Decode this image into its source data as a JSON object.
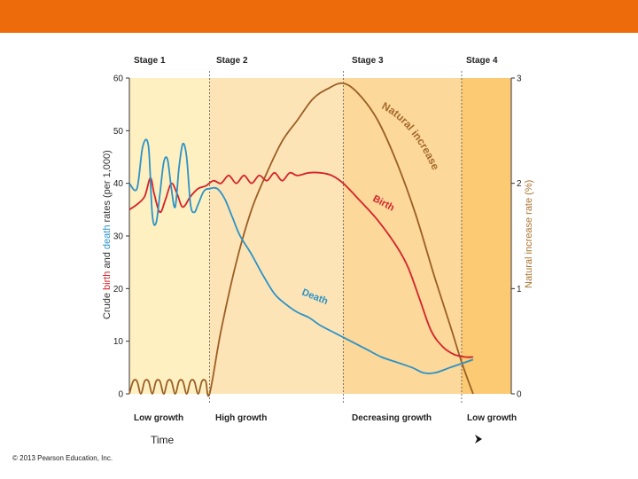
{
  "footer": {
    "copyright": "© 2013 Pearson Education, Inc."
  },
  "chart_data": {
    "type": "line",
    "title": "",
    "stages": [
      "Stage 1",
      "Stage 2",
      "Stage 3",
      "Stage 4"
    ],
    "growth_labels": [
      "Low growth",
      "High growth",
      "Decreasing growth",
      "Low growth"
    ],
    "xlabel": "Time",
    "ylabel_left": {
      "prefix": "Crude ",
      "birth": "birth",
      "mid": " and ",
      "death": "death",
      "suffix": " rates (per 1,000)"
    },
    "ylabel_right": "Natural increase rate (%)",
    "ylim_left": [
      0,
      60
    ],
    "yticks_left": [
      "0",
      "10",
      "20",
      "30",
      "40",
      "50",
      "60"
    ],
    "ylim_right": [
      0,
      3
    ],
    "yticks_right": [
      "0",
      "1",
      "2",
      "3"
    ],
    "xlim": [
      0,
      100
    ],
    "stage_boundaries": [
      21,
      56,
      87
    ],
    "curve_labels": {
      "birth": "Birth",
      "death": "Death",
      "natural": "Natural increase"
    },
    "series": [
      {
        "name": "Birth",
        "axis": "left",
        "color": "#d3232a",
        "points": [
          [
            0,
            35
          ],
          [
            2,
            36
          ],
          [
            4,
            37.5
          ],
          [
            5.5,
            41
          ],
          [
            6.5,
            38
          ],
          [
            8,
            34.5
          ],
          [
            9.5,
            37
          ],
          [
            11,
            40
          ],
          [
            12.5,
            38
          ],
          [
            14,
            35.5
          ],
          [
            16,
            37.5
          ],
          [
            18,
            39
          ],
          [
            20,
            39.5
          ],
          [
            22,
            40.5
          ],
          [
            24,
            40
          ],
          [
            26,
            41.5
          ],
          [
            28,
            40
          ],
          [
            30,
            41.5
          ],
          [
            32,
            40
          ],
          [
            34,
            41.5
          ],
          [
            36,
            40.5
          ],
          [
            38,
            42
          ],
          [
            40,
            40.5
          ],
          [
            42,
            42
          ],
          [
            44,
            41.5
          ],
          [
            47,
            42
          ],
          [
            50,
            42
          ],
          [
            53,
            41.5
          ],
          [
            56,
            40
          ],
          [
            60,
            37
          ],
          [
            65,
            33
          ],
          [
            70,
            28
          ],
          [
            73,
            24
          ],
          [
            76,
            18
          ],
          [
            79,
            12
          ],
          [
            82,
            9
          ],
          [
            85,
            7.5
          ],
          [
            88,
            7
          ],
          [
            90,
            7
          ]
        ]
      },
      {
        "name": "Death",
        "axis": "left",
        "color": "#2b92c7",
        "points": [
          [
            0,
            40
          ],
          [
            2,
            39
          ],
          [
            3.5,
            47
          ],
          [
            5,
            47
          ],
          [
            6,
            34
          ],
          [
            7,
            32.5
          ],
          [
            8,
            38
          ],
          [
            9,
            44
          ],
          [
            10,
            44.5
          ],
          [
            11,
            39
          ],
          [
            12,
            35.5
          ],
          [
            13,
            43
          ],
          [
            14,
            47.5
          ],
          [
            15,
            45
          ],
          [
            16,
            36
          ],
          [
            17,
            34.5
          ],
          [
            18,
            36
          ],
          [
            19.5,
            38.5
          ],
          [
            21,
            39
          ],
          [
            23,
            39
          ],
          [
            25,
            37
          ],
          [
            27,
            33.5
          ],
          [
            29,
            30
          ],
          [
            32,
            26.5
          ],
          [
            35,
            22.5
          ],
          [
            38,
            19
          ],
          [
            41,
            17
          ],
          [
            44,
            15.5
          ],
          [
            47,
            14.5
          ],
          [
            50,
            13
          ],
          [
            54,
            11.5
          ],
          [
            58,
            10
          ],
          [
            62,
            8.5
          ],
          [
            66,
            7
          ],
          [
            70,
            6
          ],
          [
            74,
            5
          ],
          [
            77,
            4
          ],
          [
            80,
            4
          ],
          [
            84,
            5
          ],
          [
            88,
            6
          ],
          [
            90,
            6.5
          ]
        ]
      },
      {
        "name": "Natural increase",
        "axis": "right",
        "color": "#9a5e24",
        "points": [
          [
            0,
            0
          ],
          [
            1,
            0.12
          ],
          [
            2,
            0.12
          ],
          [
            3,
            0
          ],
          [
            4,
            0.12
          ],
          [
            5,
            0.12
          ],
          [
            6,
            0
          ],
          [
            7,
            0.12
          ],
          [
            8,
            0.12
          ],
          [
            9,
            0
          ],
          [
            10,
            0.12
          ],
          [
            11,
            0.12
          ],
          [
            12,
            0
          ],
          [
            13,
            0.12
          ],
          [
            14,
            0.12
          ],
          [
            15,
            0
          ],
          [
            16,
            0.12
          ],
          [
            17,
            0.12
          ],
          [
            18,
            0
          ],
          [
            19,
            0.12
          ],
          [
            20,
            0.12
          ],
          [
            21,
            0
          ],
          [
            24,
            0.6
          ],
          [
            28,
            1.25
          ],
          [
            32,
            1.75
          ],
          [
            36,
            2.1
          ],
          [
            40,
            2.4
          ],
          [
            44,
            2.6
          ],
          [
            48,
            2.8
          ],
          [
            52,
            2.9
          ],
          [
            56,
            2.95
          ],
          [
            60,
            2.85
          ],
          [
            65,
            2.6
          ],
          [
            70,
            2.2
          ],
          [
            75,
            1.7
          ],
          [
            80,
            1.1
          ],
          [
            84,
            0.65
          ],
          [
            87,
            0.3
          ],
          [
            90,
            0
          ]
        ]
      }
    ]
  }
}
